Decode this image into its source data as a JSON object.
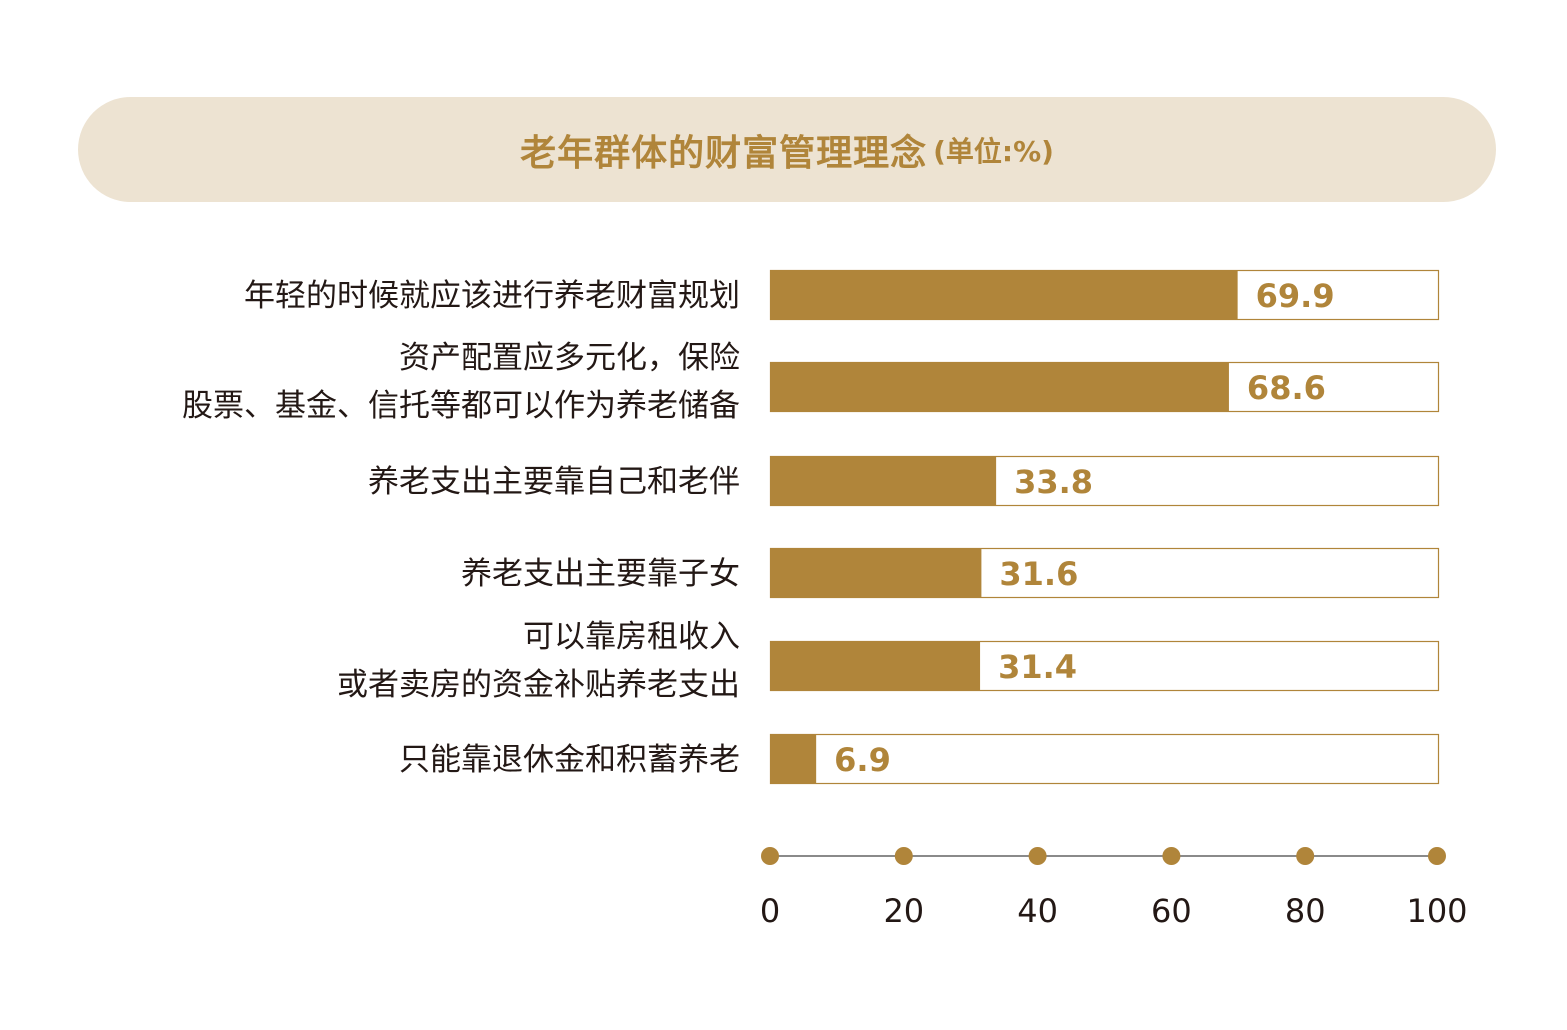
{
  "chart_data": {
    "type": "bar",
    "orientation": "horizontal",
    "title": "老年群体的财富管理理念",
    "unit": "(单位:%)",
    "categories": [
      [
        "年轻的时候就应该进行养老财富规划"
      ],
      [
        "资产配置应多元化，保险",
        "股票、基金、信托等都可以作为养老储备"
      ],
      [
        "养老支出主要靠自己和老伴"
      ],
      [
        "养老支出主要靠子女"
      ],
      [
        "可以靠房租收入",
        "或者卖房的资金补贴养老支出"
      ],
      [
        "只能靠退休金和积蓄养老"
      ]
    ],
    "values": [
      69.9,
      68.6,
      33.8,
      31.6,
      31.4,
      6.9
    ],
    "value_labels": [
      "69.9",
      "68.6",
      "33.8",
      "31.6",
      "31.4",
      "6.9"
    ],
    "xlim": [
      0,
      100
    ],
    "ticks": [
      0,
      20,
      40,
      60,
      80,
      100
    ],
    "tick_labels": [
      "0",
      "20",
      "40",
      "60",
      "80",
      "100"
    ],
    "colors": {
      "bar": "#b0853a",
      "bar_outline": "#b0853a",
      "axis": "#8a8a8a",
      "title_bg": "#ede3d2"
    }
  }
}
